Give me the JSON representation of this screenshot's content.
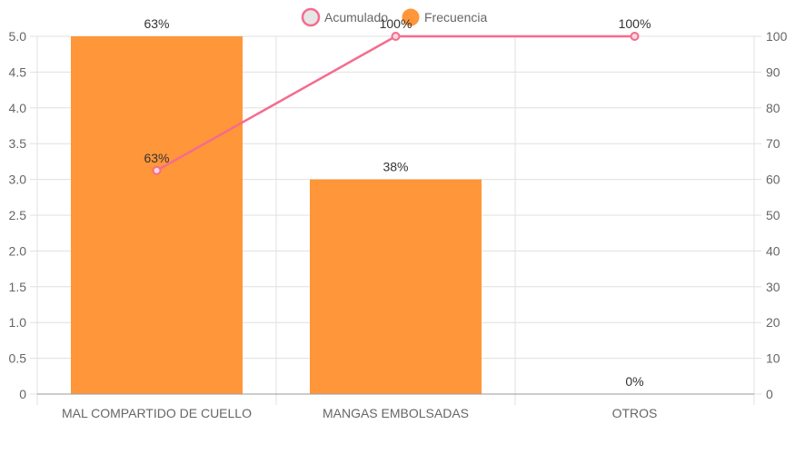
{
  "chart_data": {
    "type": "bar",
    "categories": [
      "MAL COMPARTIDO DE CUELLO",
      "MANGAS EMBOLSADAS",
      "OTROS"
    ],
    "series": [
      {
        "name": "Frecuencia",
        "type": "bar",
        "axis": "left",
        "values": [
          5,
          3,
          0
        ],
        "labels": [
          "63%",
          "38%",
          "0%"
        ],
        "color": "#ff9639"
      },
      {
        "name": "Acumulado",
        "type": "line",
        "axis": "right",
        "values": [
          62.5,
          100,
          100
        ],
        "labels": [
          "63%",
          "100%",
          "100%"
        ],
        "color": "#f56b8e"
      }
    ],
    "y_left": {
      "min": 0,
      "max": 5,
      "step": 0.5,
      "ticks": [
        "0",
        "0.5",
        "1.0",
        "1.5",
        "2.0",
        "2.5",
        "3.0",
        "3.5",
        "4.0",
        "4.5",
        "5.0"
      ]
    },
    "y_right": {
      "min": 0,
      "max": 100,
      "step": 10,
      "ticks": [
        "0",
        "10",
        "20",
        "30",
        "40",
        "50",
        "60",
        "70",
        "80",
        "90",
        "100"
      ]
    },
    "grid": true,
    "legend": {
      "position": "top",
      "items": [
        "Acumulado",
        "Frecuencia"
      ]
    },
    "colors": {
      "grid": "#e0e0e0",
      "axis": "#999999",
      "legend_acumulado_fill": "#e6e6e6"
    }
  }
}
